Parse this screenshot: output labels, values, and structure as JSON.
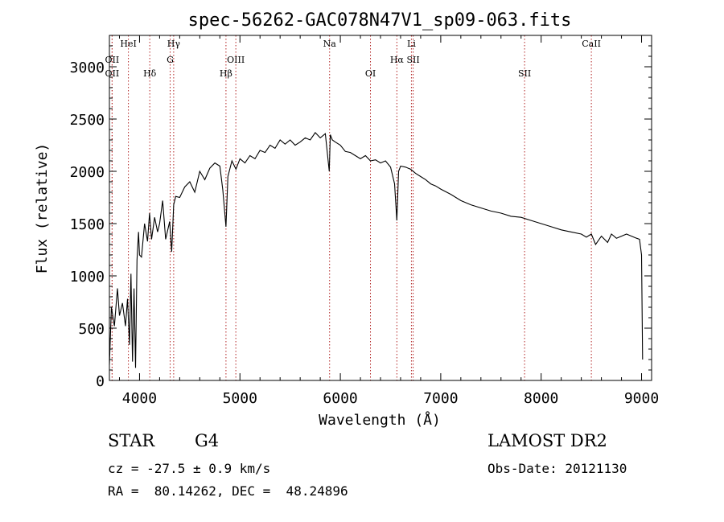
{
  "chart_data": {
    "type": "line",
    "title": "spec-56262-GAC078N47V1_sp09-063.fits",
    "xlabel": "Wavelength (Å)",
    "ylabel": "Flux (relative)",
    "xlim": [
      3700,
      9100
    ],
    "ylim": [
      0,
      3300
    ],
    "xticks": [
      4000,
      5000,
      6000,
      7000,
      8000,
      9000
    ],
    "yticks": [
      0,
      500,
      1000,
      1500,
      2000,
      2500,
      3000
    ],
    "grid": false,
    "line_color": "#000000",
    "marker_color": "#b22222",
    "spectrum": {
      "x": [
        3700,
        3720,
        3750,
        3780,
        3800,
        3830,
        3860,
        3880,
        3900,
        3915,
        3930,
        3945,
        3960,
        3975,
        3990,
        4000,
        4020,
        4050,
        4080,
        4100,
        4120,
        4150,
        4180,
        4200,
        4230,
        4260,
        4300,
        4320,
        4340,
        4360,
        4400,
        4450,
        4500,
        4550,
        4600,
        4650,
        4700,
        4750,
        4800,
        4830,
        4861,
        4880,
        4920,
        4960,
        5000,
        5050,
        5100,
        5150,
        5200,
        5250,
        5300,
        5350,
        5400,
        5450,
        5500,
        5550,
        5600,
        5650,
        5700,
        5750,
        5800,
        5850,
        5890,
        5900,
        5920,
        5950,
        6000,
        6050,
        6100,
        6150,
        6200,
        6250,
        6300,
        6350,
        6400,
        6450,
        6500,
        6540,
        6563,
        6580,
        6600,
        6650,
        6700,
        6750,
        6800,
        6850,
        6900,
        6950,
        7000,
        7100,
        7200,
        7300,
        7400,
        7500,
        7600,
        7700,
        7800,
        7900,
        8000,
        8100,
        8200,
        8300,
        8400,
        8450,
        8500,
        8542,
        8600,
        8662,
        8700,
        8750,
        8800,
        8850,
        8900,
        8950,
        8980,
        9000,
        9010
      ],
      "y": [
        150,
        700,
        520,
        880,
        620,
        740,
        520,
        780,
        340,
        1020,
        180,
        880,
        120,
        1150,
        1420,
        1200,
        1180,
        1500,
        1330,
        1600,
        1350,
        1560,
        1420,
        1500,
        1720,
        1350,
        1520,
        1230,
        1680,
        1760,
        1750,
        1850,
        1900,
        1800,
        2000,
        1920,
        2030,
        2080,
        2050,
        1820,
        1470,
        1950,
        2100,
        2020,
        2120,
        2080,
        2150,
        2120,
        2200,
        2180,
        2250,
        2220,
        2300,
        2260,
        2300,
        2250,
        2280,
        2320,
        2300,
        2370,
        2320,
        2360,
        2000,
        2350,
        2300,
        2280,
        2250,
        2190,
        2180,
        2150,
        2120,
        2150,
        2100,
        2110,
        2080,
        2100,
        2040,
        1880,
        1530,
        2000,
        2050,
        2040,
        2020,
        1980,
        1950,
        1920,
        1880,
        1860,
        1830,
        1780,
        1720,
        1680,
        1650,
        1620,
        1600,
        1570,
        1560,
        1530,
        1500,
        1470,
        1440,
        1420,
        1400,
        1370,
        1400,
        1300,
        1380,
        1320,
        1400,
        1360,
        1380,
        1400,
        1380,
        1360,
        1350,
        1200,
        200
      ]
    },
    "lines": [
      {
        "label": "HeI",
        "wl": 3889,
        "row": 0
      },
      {
        "label": "OII",
        "wl": 3727,
        "row": 2
      },
      {
        "label": "OII",
        "wl": 3727,
        "row": 3
      },
      {
        "label": "Hδ",
        "wl": 4102,
        "row": 3
      },
      {
        "label": "Hγ",
        "wl": 4340,
        "row": 0
      },
      {
        "label": "G",
        "wl": 4305,
        "row": 2
      },
      {
        "label": "Hβ",
        "wl": 4861,
        "row": 3
      },
      {
        "label": "OIII",
        "wl": 4959,
        "row": 2
      },
      {
        "label": "Na",
        "wl": 5893,
        "row": 0
      },
      {
        "label": "OI",
        "wl": 6300,
        "row": 3
      },
      {
        "label": "Li",
        "wl": 6708,
        "row": 0
      },
      {
        "label": "Hα",
        "wl": 6563,
        "row": 2
      },
      {
        "label": "SII",
        "wl": 6725,
        "row": 2
      },
      {
        "label": "SII",
        "wl": 7835,
        "row": 3
      },
      {
        "label": "CaII",
        "wl": 8500,
        "row": 0
      }
    ]
  },
  "footer": {
    "object_class": "STAR",
    "subclass": "G4",
    "survey": "LAMOST DR2",
    "cz": "cz = -27.5 ± 0.9 km/s",
    "obs_date": "Obs-Date: 20121130",
    "coords": "RA =  80.14262, DEC =  48.24896"
  }
}
